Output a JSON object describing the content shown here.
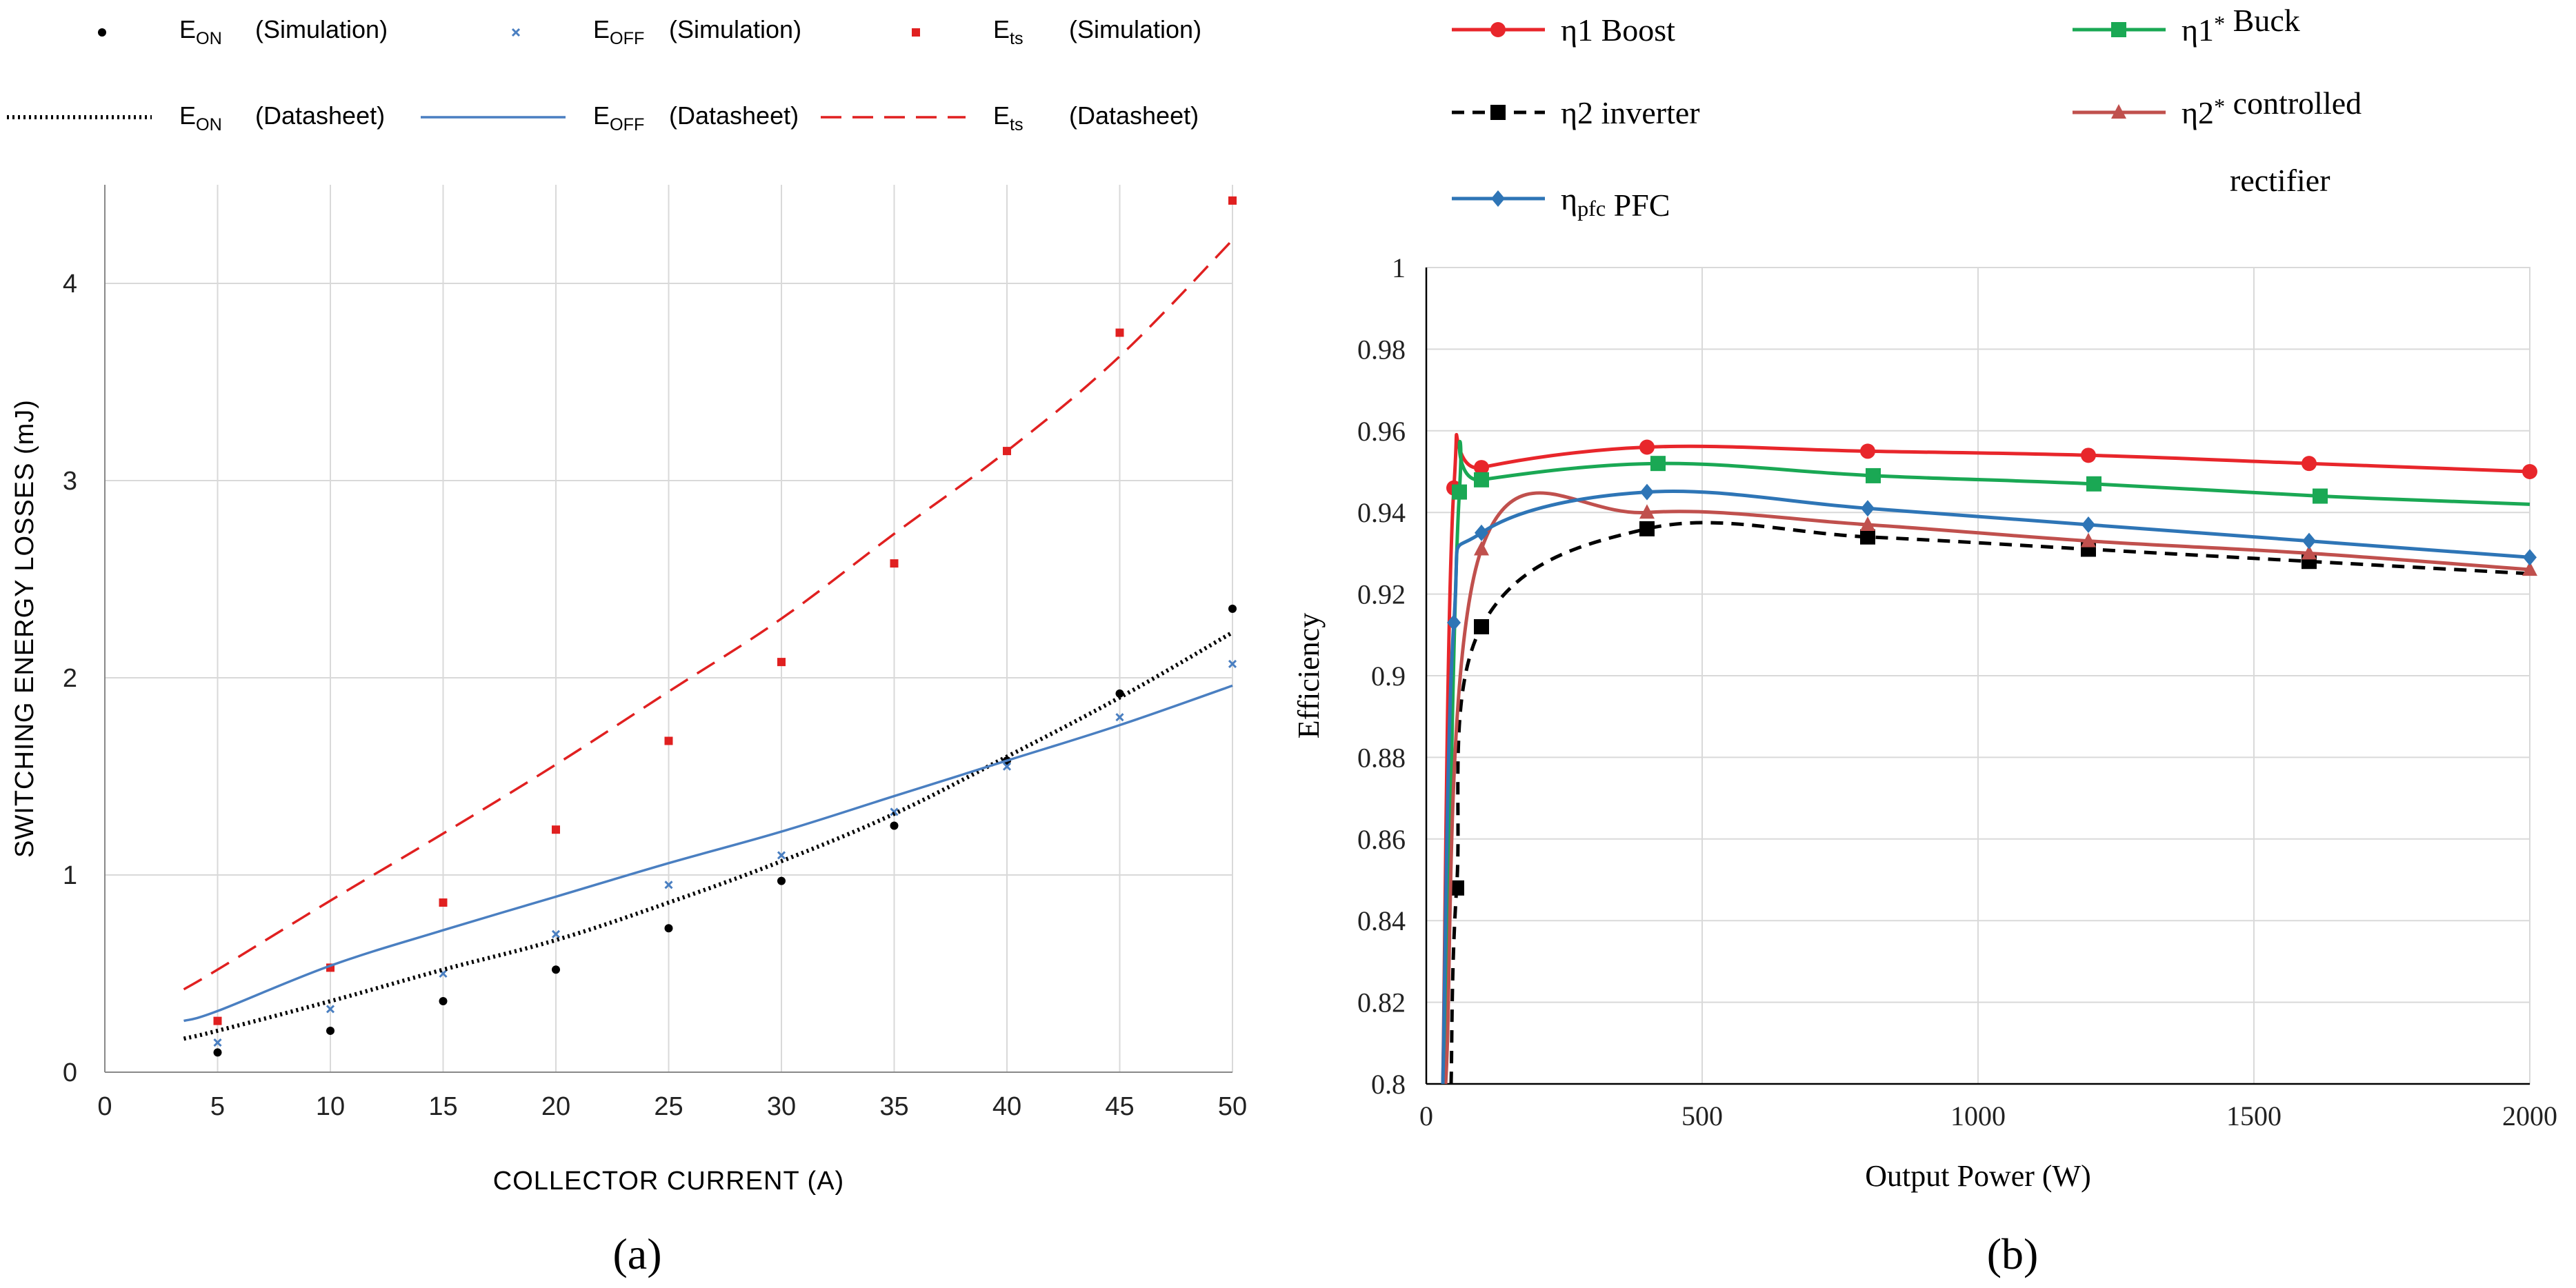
{
  "figure": {
    "caption_a": "(a)",
    "caption_b": "(b)"
  },
  "chart_data": [
    {
      "type": "line",
      "panel": "(a)",
      "title": "",
      "xlabel": "COLLECTOR CURRENT (A)",
      "ylabel": "SWITCHING ENERGY LOSSES (mJ)",
      "xlim": [
        0,
        50
      ],
      "ylim": [
        0,
        4.5
      ],
      "xticks": [
        "0",
        "5",
        "10",
        "15",
        "20",
        "25",
        "30",
        "35",
        "40",
        "45",
        "50"
      ],
      "yticks": [
        "0",
        "1",
        "2",
        "3",
        "4"
      ],
      "grid": true,
      "legend_position": "top",
      "series": [
        {
          "name": "E_ON (Simulation)",
          "label_main": "E",
          "label_sub": "ON",
          "label_tail": "(Simulation)",
          "style": "dot-marker",
          "color": "#000000",
          "x": [
            5,
            10,
            15,
            20,
            25,
            30,
            35,
            40,
            45,
            50
          ],
          "y": [
            0.1,
            0.21,
            0.36,
            0.52,
            0.73,
            0.97,
            1.25,
            1.58,
            1.92,
            2.35
          ]
        },
        {
          "name": "E_OFF (Simulation)",
          "label_main": "E",
          "label_sub": "OFF",
          "label_tail": "(Simulation)",
          "style": "x-marker",
          "color": "#4a7fc1",
          "x": [
            5,
            10,
            15,
            20,
            25,
            30,
            35,
            40,
            45,
            50
          ],
          "y": [
            0.15,
            0.32,
            0.5,
            0.7,
            0.95,
            1.1,
            1.32,
            1.55,
            1.8,
            2.07
          ]
        },
        {
          "name": "E_ts (Simulation)",
          "label_main": "E",
          "label_sub": "ts",
          "label_tail": "(Simulation)",
          "style": "square-marker",
          "color": "#e02020",
          "x": [
            5,
            10,
            15,
            20,
            25,
            30,
            35,
            40,
            45,
            50
          ],
          "y": [
            0.26,
            0.53,
            0.86,
            1.23,
            1.68,
            2.08,
            2.58,
            3.15,
            3.75,
            4.42
          ]
        },
        {
          "name": "E_ON (Datasheet)",
          "label_main": "E",
          "label_sub": "ON",
          "label_tail": "(Datasheet)",
          "style": "dotted-line",
          "color": "#000000",
          "x": [
            3.5,
            5,
            10,
            15,
            20,
            25,
            30,
            35,
            40,
            45,
            50
          ],
          "y": [
            0.17,
            0.21,
            0.36,
            0.52,
            0.67,
            0.86,
            1.07,
            1.31,
            1.6,
            1.9,
            2.23
          ]
        },
        {
          "name": "E_OFF (Datasheet)",
          "label_main": "E",
          "label_sub": "OFF",
          "label_tail": "(Datasheet)",
          "style": "solid-line",
          "color": "#4a7fc1",
          "x": [
            3.5,
            5,
            10,
            15,
            20,
            25,
            30,
            35,
            40,
            45,
            50
          ],
          "y": [
            0.26,
            0.31,
            0.54,
            0.72,
            0.89,
            1.06,
            1.22,
            1.4,
            1.58,
            1.76,
            1.96
          ]
        },
        {
          "name": "E_ts (Datasheet)",
          "label_main": "E",
          "label_sub": "ts",
          "label_tail": "(Datasheet)",
          "style": "dashed-line",
          "color": "#e02020",
          "x": [
            3.5,
            5,
            10,
            15,
            20,
            25,
            30,
            35,
            40,
            45,
            50
          ],
          "y": [
            0.42,
            0.52,
            0.87,
            1.21,
            1.56,
            1.93,
            2.3,
            2.73,
            3.15,
            3.63,
            4.22
          ]
        }
      ]
    },
    {
      "type": "line",
      "panel": "(b)",
      "title": "",
      "xlabel": "Output Power (W)",
      "ylabel": "Efficiency",
      "xlim": [
        0,
        2000
      ],
      "ylim": [
        0.8,
        1.0
      ],
      "xticks": [
        "0",
        "500",
        "1000",
        "1500",
        "2000"
      ],
      "yticks": [
        "0.8",
        "0.82",
        "0.84",
        "0.86",
        "0.88",
        "0.9",
        "0.92",
        "0.94",
        "0.96",
        "0.98",
        "1"
      ],
      "grid": true,
      "legend_position": "top",
      "series": [
        {
          "name": "η1 Boost",
          "label_main": "η1",
          "label_sub": "",
          "label_sup": "",
          "label_tail": " Boost",
          "label_tail2": "",
          "marker": "circle",
          "color": "#e8262b",
          "x": [
            30,
            50,
            100,
            400,
            800,
            1200,
            1600,
            2000
          ],
          "y": [
            0.8,
            0.946,
            0.951,
            0.956,
            0.955,
            0.954,
            0.952,
            0.95
          ],
          "marker_x": [
            50,
            100,
            400,
            800,
            1200,
            1600,
            2000
          ]
        },
        {
          "name": "η1* Buck",
          "label_main": "η1",
          "label_sub": "",
          "label_sup": "*",
          "label_tail": " Buck",
          "label_tail2": "",
          "marker": "square",
          "color": "#1aa854",
          "x": [
            35,
            60,
            100,
            420,
            810,
            1210,
            1620,
            2000
          ],
          "y": [
            0.8,
            0.945,
            0.948,
            0.952,
            0.949,
            0.947,
            0.944,
            0.942
          ],
          "marker_x": [
            60,
            100,
            420,
            810,
            1210,
            1620
          ]
        },
        {
          "name": "η2 inverter",
          "label_main": "η2",
          "label_sub": "",
          "label_sup": "",
          "label_tail": " inverter",
          "label_tail2": "",
          "marker": "square",
          "color": "#000000",
          "x": [
            45,
            55,
            100,
            400,
            800,
            1200,
            1600,
            2000
          ],
          "y": [
            0.8,
            0.848,
            0.912,
            0.936,
            0.934,
            0.931,
            0.928,
            0.925
          ],
          "marker_x": [
            55,
            100,
            400,
            800,
            1200,
            1600
          ]
        },
        {
          "name": "η2* controlled rectifier",
          "label_main": "η2",
          "label_sub": "",
          "label_sup": "*",
          "label_tail": " controlled",
          "label_tail2": "rectifier",
          "marker": "triangle",
          "color": "#c0504d",
          "x": [
            35,
            100,
            400,
            800,
            1200,
            1600,
            2000
          ],
          "y": [
            0.8,
            0.931,
            0.94,
            0.937,
            0.933,
            0.93,
            0.926
          ],
          "marker_x": [
            100,
            400,
            800,
            1200,
            1600,
            2000
          ]
        },
        {
          "name": "ηpfc PFC",
          "label_main": "η",
          "label_sub": "pfc",
          "label_sup": "",
          "label_tail": " PFC",
          "label_tail2": "",
          "marker": "diamond",
          "color": "#2e75b6",
          "x": [
            30,
            50,
            100,
            400,
            800,
            1200,
            1600,
            2000
          ],
          "y": [
            0.8,
            0.913,
            0.935,
            0.945,
            0.941,
            0.937,
            0.933,
            0.929
          ],
          "marker_x": [
            50,
            100,
            400,
            800,
            1200,
            1600,
            2000
          ]
        }
      ]
    }
  ]
}
